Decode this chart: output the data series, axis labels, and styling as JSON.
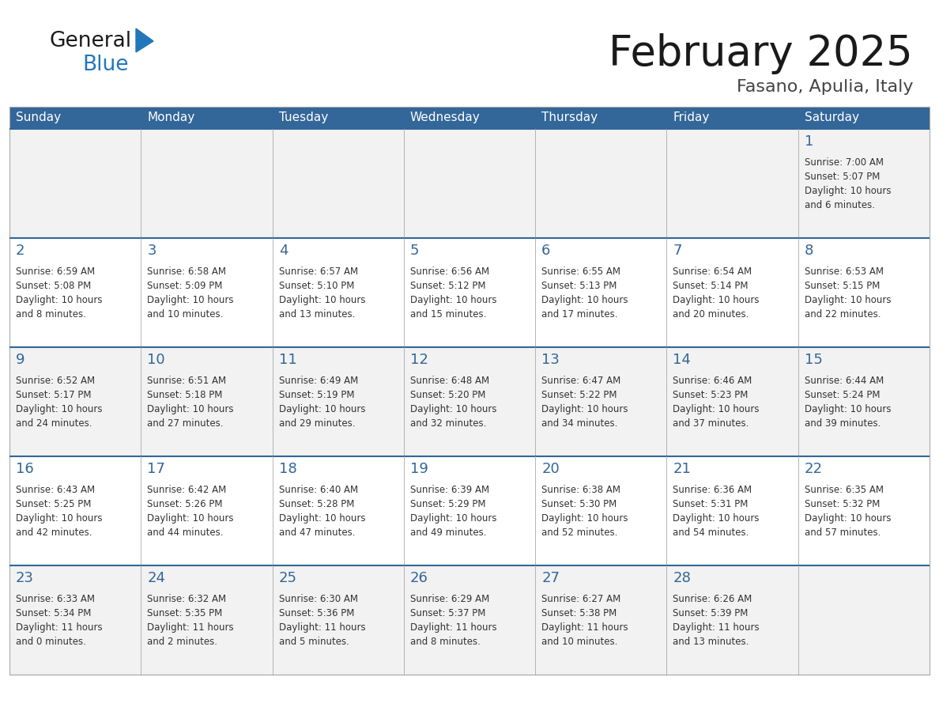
{
  "title": "February 2025",
  "subtitle": "Fasano, Apulia, Italy",
  "header_bg": "#336699",
  "header_text_color": "#ffffff",
  "days_of_week": [
    "Sunday",
    "Monday",
    "Tuesday",
    "Wednesday",
    "Thursday",
    "Friday",
    "Saturday"
  ],
  "cell_bg_odd": "#f2f2f2",
  "cell_bg_even": "#ffffff",
  "cell_border_color": "#aaaaaa",
  "row_separator_color": "#336699",
  "day_number_color": "#336699",
  "info_text_color": "#333333",
  "title_color": "#1a1a1a",
  "subtitle_color": "#444444",
  "logo_general_color": "#1a1a1a",
  "logo_blue_color": "#2277bb",
  "weeks": [
    [
      {
        "day": null,
        "info": ""
      },
      {
        "day": null,
        "info": ""
      },
      {
        "day": null,
        "info": ""
      },
      {
        "day": null,
        "info": ""
      },
      {
        "day": null,
        "info": ""
      },
      {
        "day": null,
        "info": ""
      },
      {
        "day": 1,
        "info": "Sunrise: 7:00 AM\nSunset: 5:07 PM\nDaylight: 10 hours\nand 6 minutes."
      }
    ],
    [
      {
        "day": 2,
        "info": "Sunrise: 6:59 AM\nSunset: 5:08 PM\nDaylight: 10 hours\nand 8 minutes."
      },
      {
        "day": 3,
        "info": "Sunrise: 6:58 AM\nSunset: 5:09 PM\nDaylight: 10 hours\nand 10 minutes."
      },
      {
        "day": 4,
        "info": "Sunrise: 6:57 AM\nSunset: 5:10 PM\nDaylight: 10 hours\nand 13 minutes."
      },
      {
        "day": 5,
        "info": "Sunrise: 6:56 AM\nSunset: 5:12 PM\nDaylight: 10 hours\nand 15 minutes."
      },
      {
        "day": 6,
        "info": "Sunrise: 6:55 AM\nSunset: 5:13 PM\nDaylight: 10 hours\nand 17 minutes."
      },
      {
        "day": 7,
        "info": "Sunrise: 6:54 AM\nSunset: 5:14 PM\nDaylight: 10 hours\nand 20 minutes."
      },
      {
        "day": 8,
        "info": "Sunrise: 6:53 AM\nSunset: 5:15 PM\nDaylight: 10 hours\nand 22 minutes."
      }
    ],
    [
      {
        "day": 9,
        "info": "Sunrise: 6:52 AM\nSunset: 5:17 PM\nDaylight: 10 hours\nand 24 minutes."
      },
      {
        "day": 10,
        "info": "Sunrise: 6:51 AM\nSunset: 5:18 PM\nDaylight: 10 hours\nand 27 minutes."
      },
      {
        "day": 11,
        "info": "Sunrise: 6:49 AM\nSunset: 5:19 PM\nDaylight: 10 hours\nand 29 minutes."
      },
      {
        "day": 12,
        "info": "Sunrise: 6:48 AM\nSunset: 5:20 PM\nDaylight: 10 hours\nand 32 minutes."
      },
      {
        "day": 13,
        "info": "Sunrise: 6:47 AM\nSunset: 5:22 PM\nDaylight: 10 hours\nand 34 minutes."
      },
      {
        "day": 14,
        "info": "Sunrise: 6:46 AM\nSunset: 5:23 PM\nDaylight: 10 hours\nand 37 minutes."
      },
      {
        "day": 15,
        "info": "Sunrise: 6:44 AM\nSunset: 5:24 PM\nDaylight: 10 hours\nand 39 minutes."
      }
    ],
    [
      {
        "day": 16,
        "info": "Sunrise: 6:43 AM\nSunset: 5:25 PM\nDaylight: 10 hours\nand 42 minutes."
      },
      {
        "day": 17,
        "info": "Sunrise: 6:42 AM\nSunset: 5:26 PM\nDaylight: 10 hours\nand 44 minutes."
      },
      {
        "day": 18,
        "info": "Sunrise: 6:40 AM\nSunset: 5:28 PM\nDaylight: 10 hours\nand 47 minutes."
      },
      {
        "day": 19,
        "info": "Sunrise: 6:39 AM\nSunset: 5:29 PM\nDaylight: 10 hours\nand 49 minutes."
      },
      {
        "day": 20,
        "info": "Sunrise: 6:38 AM\nSunset: 5:30 PM\nDaylight: 10 hours\nand 52 minutes."
      },
      {
        "day": 21,
        "info": "Sunrise: 6:36 AM\nSunset: 5:31 PM\nDaylight: 10 hours\nand 54 minutes."
      },
      {
        "day": 22,
        "info": "Sunrise: 6:35 AM\nSunset: 5:32 PM\nDaylight: 10 hours\nand 57 minutes."
      }
    ],
    [
      {
        "day": 23,
        "info": "Sunrise: 6:33 AM\nSunset: 5:34 PM\nDaylight: 11 hours\nand 0 minutes."
      },
      {
        "day": 24,
        "info": "Sunrise: 6:32 AM\nSunset: 5:35 PM\nDaylight: 11 hours\nand 2 minutes."
      },
      {
        "day": 25,
        "info": "Sunrise: 6:30 AM\nSunset: 5:36 PM\nDaylight: 11 hours\nand 5 minutes."
      },
      {
        "day": 26,
        "info": "Sunrise: 6:29 AM\nSunset: 5:37 PM\nDaylight: 11 hours\nand 8 minutes."
      },
      {
        "day": 27,
        "info": "Sunrise: 6:27 AM\nSunset: 5:38 PM\nDaylight: 11 hours\nand 10 minutes."
      },
      {
        "day": 28,
        "info": "Sunrise: 6:26 AM\nSunset: 5:39 PM\nDaylight: 11 hours\nand 13 minutes."
      },
      {
        "day": null,
        "info": ""
      }
    ]
  ]
}
